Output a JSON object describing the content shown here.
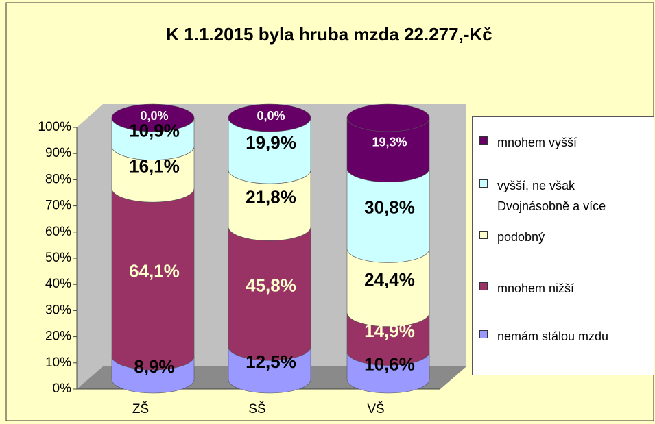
{
  "chart_data": {
    "type": "stacked-cylinder",
    "title": "K 1.1.2015 byla hruba mzda 22.277,-Kč",
    "categories": [
      "ZŠ",
      "SŠ",
      "VŠ"
    ],
    "series": [
      {
        "name": "nemám stálou mzdu",
        "color": "#9999ff",
        "label_color": "#000000",
        "values": [
          8.9,
          12.5,
          10.6
        ],
        "value_labels": [
          "8,9%",
          "12,5%",
          "10,6%"
        ]
      },
      {
        "name": "mnohem nižší",
        "color": "#993366",
        "label_color": "#ffffcc",
        "values": [
          64.1,
          45.8,
          14.9
        ],
        "value_labels": [
          "64,1%",
          "45,8%",
          "14,9%"
        ]
      },
      {
        "name": "podobný",
        "color": "#ffffcc",
        "label_color": "#000000",
        "values": [
          16.1,
          21.8,
          24.4
        ],
        "value_labels": [
          "16,1%",
          "21,8%",
          "24,4%"
        ]
      },
      {
        "name": "vyšší, ne však Dvojnásobně a více",
        "color": "#ccffff",
        "label_color": "#000000",
        "values": [
          10.9,
          19.9,
          30.8
        ],
        "value_labels": [
          "10,9%",
          "19,9%",
          "30,8%"
        ]
      },
      {
        "name": "mnohem vyšší",
        "color": "#660066",
        "label_color": "#ffffff",
        "values": [
          0.0,
          0.0,
          19.3
        ],
        "value_labels": [
          "0,0%",
          "0,0%",
          "19,3%"
        ]
      }
    ],
    "ylim": [
      0,
      100
    ],
    "yticks": [
      {
        "value": 0,
        "label": "0%"
      },
      {
        "value": 10,
        "label": "10%"
      },
      {
        "value": 20,
        "label": "20%"
      },
      {
        "value": 30,
        "label": "30%"
      },
      {
        "value": 40,
        "label": "40%"
      },
      {
        "value": 50,
        "label": "50%"
      },
      {
        "value": 60,
        "label": "60%"
      },
      {
        "value": 70,
        "label": "70%"
      },
      {
        "value": 80,
        "label": "80%"
      },
      {
        "value": 90,
        "label": "90%"
      },
      {
        "value": 100,
        "label": "100%"
      }
    ],
    "legend": "right"
  }
}
